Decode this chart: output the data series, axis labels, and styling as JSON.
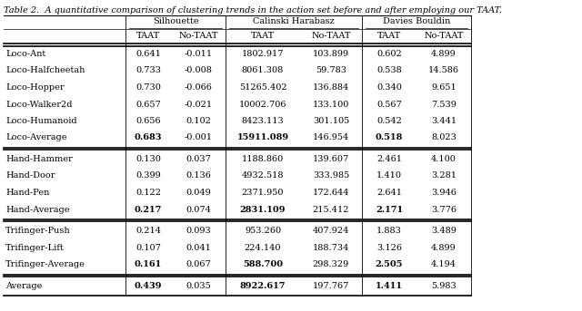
{
  "title": "Table 2.  A quantitative comparison of clustering trends in the action set before and after employing our TAAT.",
  "group_headers": [
    "Silhouette",
    "Calinski Harabasz",
    "Davies Bouldin"
  ],
  "col_headers": [
    "TAAT",
    "No-TAAT",
    "TAAT",
    "No-TAAT",
    "TAAT",
    "No-TAAT"
  ],
  "row_labels": [
    "Loco-Ant",
    "Loco-Halfcheetah",
    "Loco-Hopper",
    "Loco-Walker2d",
    "Loco-Humanoid",
    "Loco-Average",
    "Hand-Hammer",
    "Hand-Door",
    "Hand-Pen",
    "Hand-Average",
    "Trifinger-Push",
    "Trifinger-Lift",
    "Trifinger-Average",
    "Average"
  ],
  "data": [
    [
      "0.641",
      "-0.011",
      "1802.917",
      "103.899",
      "0.602",
      "4.899"
    ],
    [
      "0.733",
      "-0.008",
      "8061.308",
      "59.783",
      "0.538",
      "14.586"
    ],
    [
      "0.730",
      "-0.066",
      "51265.402",
      "136.884",
      "0.340",
      "9.651"
    ],
    [
      "0.657",
      "-0.021",
      "10002.706",
      "133.100",
      "0.567",
      "7.539"
    ],
    [
      "0.656",
      "0.102",
      "8423.113",
      "301.105",
      "0.542",
      "3.441"
    ],
    [
      "0.683",
      "-0.001",
      "15911.089",
      "146.954",
      "0.518",
      "8.023"
    ],
    [
      "0.130",
      "0.037",
      "1188.860",
      "139.607",
      "2.461",
      "4.100"
    ],
    [
      "0.399",
      "0.136",
      "4932.518",
      "333.985",
      "1.410",
      "3.281"
    ],
    [
      "0.122",
      "0.049",
      "2371.950",
      "172.644",
      "2.641",
      "3.946"
    ],
    [
      "0.217",
      "0.074",
      "2831.109",
      "215.412",
      "2.171",
      "3.776"
    ],
    [
      "0.214",
      "0.093",
      "953.260",
      "407.924",
      "1.883",
      "3.489"
    ],
    [
      "0.107",
      "0.041",
      "224.140",
      "188.734",
      "3.126",
      "4.899"
    ],
    [
      "0.161",
      "0.067",
      "588.700",
      "298.329",
      "2.505",
      "4.194"
    ],
    [
      "0.439",
      "0.035",
      "8922.617",
      "197.767",
      "1.411",
      "5.983"
    ]
  ],
  "bold_cells": {
    "5": [
      0,
      2,
      4
    ],
    "9": [
      0,
      2,
      4
    ],
    "12": [
      0,
      2,
      4
    ],
    "13": [
      0,
      2,
      4
    ]
  },
  "section_separators_after": [
    5,
    9,
    12
  ],
  "font_size": 7.0,
  "title_font_size": 7.0
}
